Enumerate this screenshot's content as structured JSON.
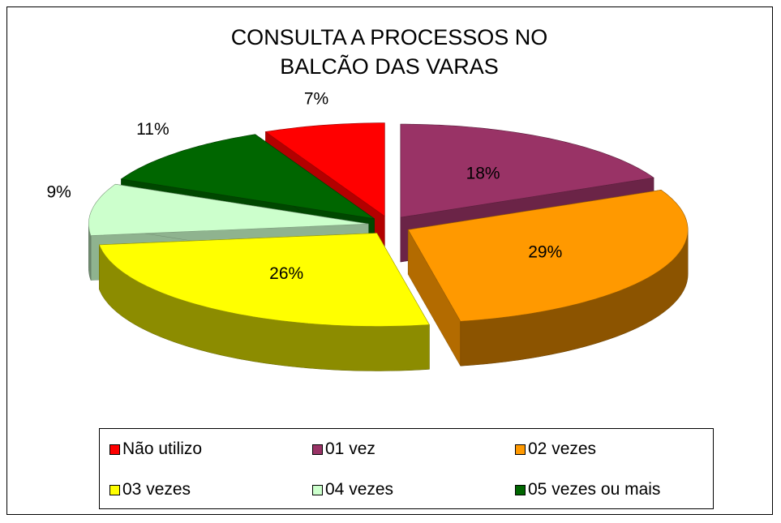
{
  "chart_data": {
    "type": "pie",
    "title": "CONSULTA A PROCESSOS NO BALCÃO DAS VARAS",
    "categories": [
      "Não utilizo",
      "01 vez",
      "02 vezes",
      "03 vezes",
      "04 vezes",
      "05 vezes ou mais"
    ],
    "values": [
      7,
      18,
      29,
      26,
      9,
      11
    ],
    "value_labels": [
      "7%",
      "18%",
      "29%",
      "26%",
      "9%",
      "11%"
    ],
    "colors": [
      "#ff0000",
      "#993366",
      "#ff9900",
      "#ffff00",
      "#ccffcc",
      "#006600"
    ],
    "legend": "bottom"
  }
}
